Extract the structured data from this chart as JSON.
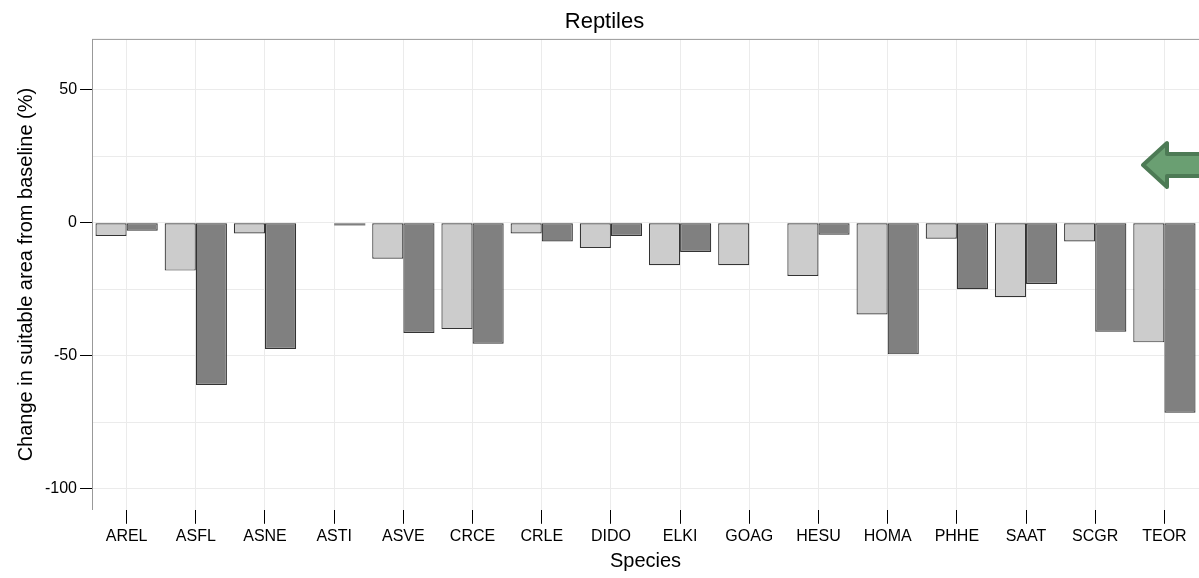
{
  "chart_data": {
    "type": "bar",
    "title": "Reptiles",
    "xlabel": "Species",
    "ylabel": "Change in suitable area from baseline (%)",
    "categories": [
      "AREL",
      "ASFL",
      "ASNE",
      "ASTI",
      "ASVE",
      "CRCE",
      "CRLE",
      "DIDO",
      "ELKI",
      "GOAG",
      "HESU",
      "HOMA",
      "PHHE",
      "SAAT",
      "SCGR",
      "TEOR"
    ],
    "series": [
      {
        "color": "#cccccc",
        "values": [
          -5,
          -18,
          -4,
          null,
          -13.5,
          -40,
          -4,
          -9.5,
          -16,
          -16,
          -20,
          -34.5,
          -6,
          -28,
          -7,
          -45
        ]
      },
      {
        "color": "#808080",
        "values": [
          -3,
          -61,
          -47.5,
          -1,
          -41.5,
          -45.5,
          -7,
          -5,
          -11,
          null,
          -4.5,
          -49.5,
          -25,
          -23,
          -41,
          -71.5
        ]
      }
    ],
    "ylim": [
      -108,
      69
    ],
    "yticks": [
      -100,
      {
        "value": -75,
        "label": null
      },
      -50,
      {
        "value": -25,
        "label": null
      },
      0,
      {
        "value": 25,
        "label": null
      },
      50
    ],
    "grid": true
  }
}
